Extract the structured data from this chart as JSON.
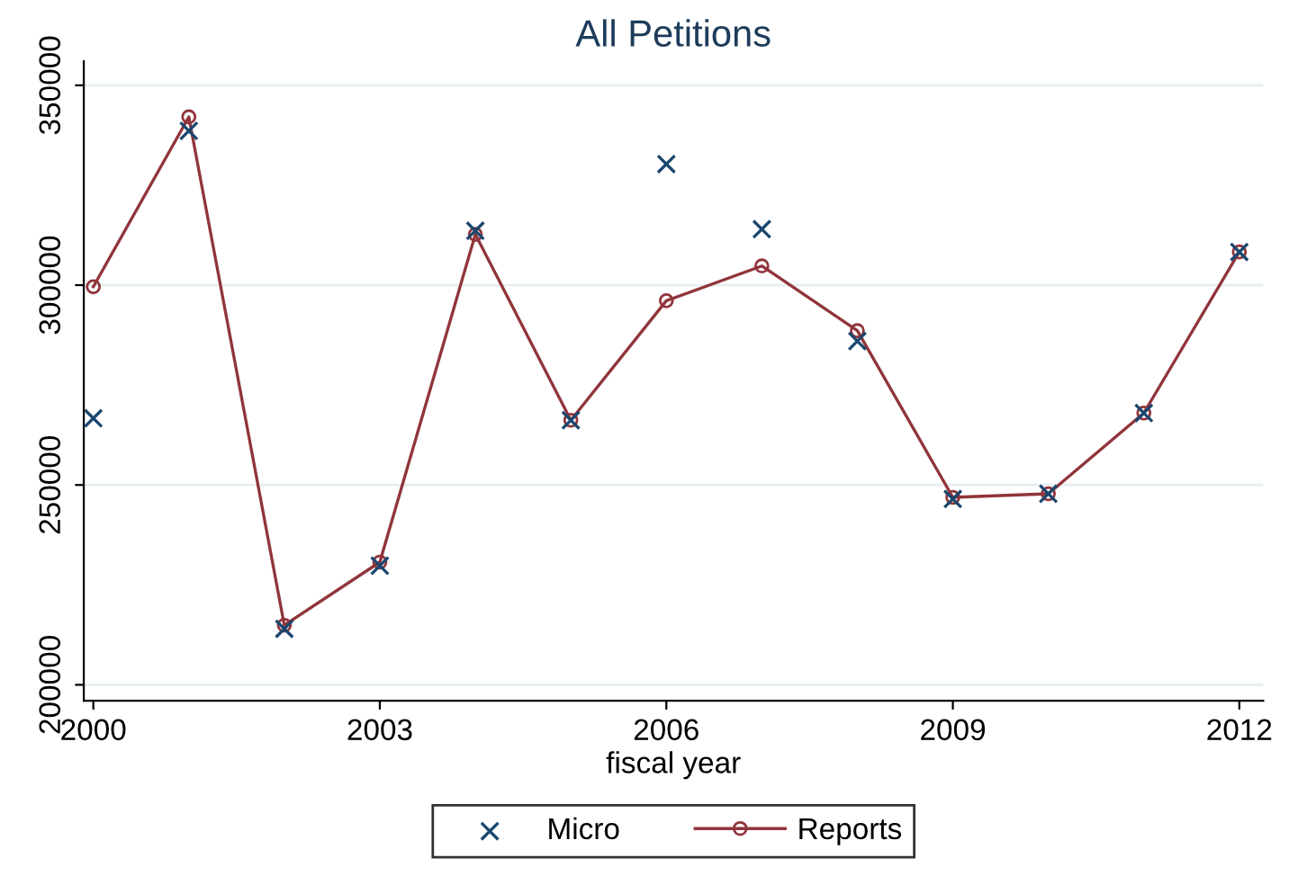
{
  "chart_data": {
    "type": "line",
    "title": "All Petitions",
    "xlabel": "fiscal year",
    "x": [
      2000,
      2001,
      2002,
      2003,
      2004,
      2005,
      2006,
      2007,
      2008,
      2009,
      2010,
      2011,
      2012
    ],
    "series": [
      {
        "name": "Micro",
        "type": "scatter",
        "marker": "cross",
        "color": "#1a476f",
        "values": [
          266700,
          338600,
          214000,
          229800,
          313600,
          266200,
          330300,
          314000,
          286000,
          246500,
          247800,
          268000,
          308300
        ]
      },
      {
        "name": "Reports",
        "marker": "circle",
        "line_style": "solid",
        "color": "#90353b",
        "values": [
          299600,
          342100,
          214900,
          230700,
          312700,
          266200,
          296100,
          304800,
          288600,
          246900,
          247800,
          268000,
          308300
        ]
      }
    ],
    "xlim": [
      1999.9,
      2012.25
    ],
    "xticks": [
      2000,
      2003,
      2006,
      2009,
      2012
    ],
    "ylim": [
      196000,
      356000
    ],
    "yticks": [
      200000,
      250000,
      300000,
      350000
    ],
    "grid": "y",
    "legend": "bottom"
  }
}
